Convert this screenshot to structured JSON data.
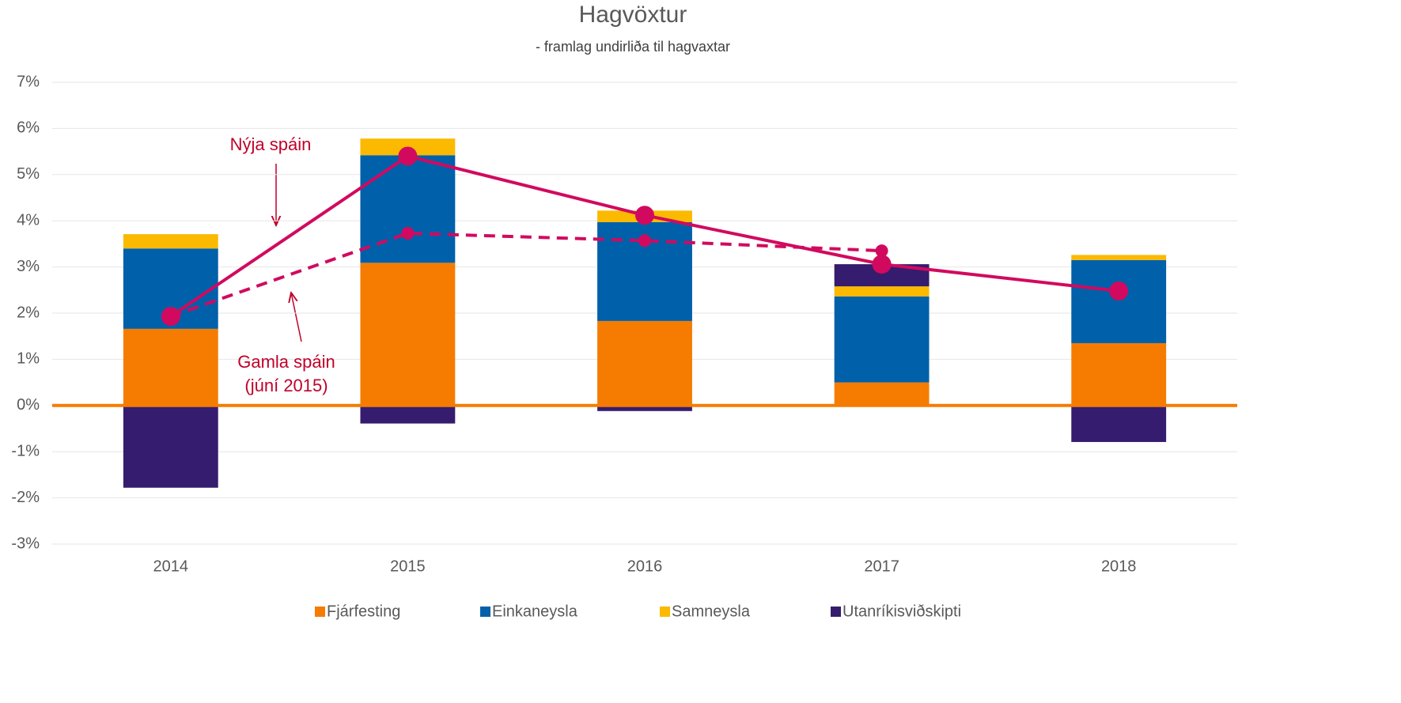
{
  "chart_data": {
    "type": "bar",
    "stacked": true,
    "title": "Hagvöxtur",
    "subtitle": "- framlag undirliða til hagvaxtar",
    "categories": [
      "2014",
      "2015",
      "2016",
      "2017",
      "2018"
    ],
    "series": [
      {
        "name": "Fjárfesting",
        "color": "#f57c00",
        "values": [
          1.66,
          3.09,
          1.83,
          0.5,
          1.35
        ]
      },
      {
        "name": "Einkaneysla",
        "color": "#0060aa",
        "values": [
          1.74,
          2.33,
          2.14,
          1.86,
          1.8
        ]
      },
      {
        "name": "Samneysla",
        "color": "#fbb900",
        "values": [
          0.31,
          0.36,
          0.25,
          0.22,
          0.11
        ]
      },
      {
        "name": "Utanríkisviðskipti",
        "color": "#351c6e",
        "values": [
          -1.78,
          -0.39,
          -0.12,
          0.48,
          -0.79
        ]
      }
    ],
    "lines": [
      {
        "name": "Nýja spáin",
        "color": "#d10a5f",
        "dashed": false,
        "values": [
          1.93,
          5.4,
          4.12,
          3.06,
          2.48
        ]
      },
      {
        "name_lines": [
          "Gamla spáin",
          "(júní 2015)"
        ],
        "color": "#d10a5f",
        "dashed": true,
        "values": [
          1.93,
          3.73,
          3.57,
          3.35,
          null
        ]
      }
    ],
    "ylim": [
      -3,
      7
    ],
    "yticks": [
      {
        "value": -3,
        "label": "-3%"
      },
      {
        "value": -2,
        "label": "-2%"
      },
      {
        "value": -1,
        "label": "-1%"
      },
      {
        "value": 0,
        "label": "0%"
      },
      {
        "value": 1,
        "label": "1%"
      },
      {
        "value": 2,
        "label": "2%"
      },
      {
        "value": 3,
        "label": "3%"
      },
      {
        "value": 4,
        "label": "4%"
      },
      {
        "value": 5,
        "label": "5%"
      },
      {
        "value": 6,
        "label": "6%"
      },
      {
        "value": 7,
        "label": "7%"
      }
    ],
    "grid": true,
    "legend": "bottom"
  }
}
